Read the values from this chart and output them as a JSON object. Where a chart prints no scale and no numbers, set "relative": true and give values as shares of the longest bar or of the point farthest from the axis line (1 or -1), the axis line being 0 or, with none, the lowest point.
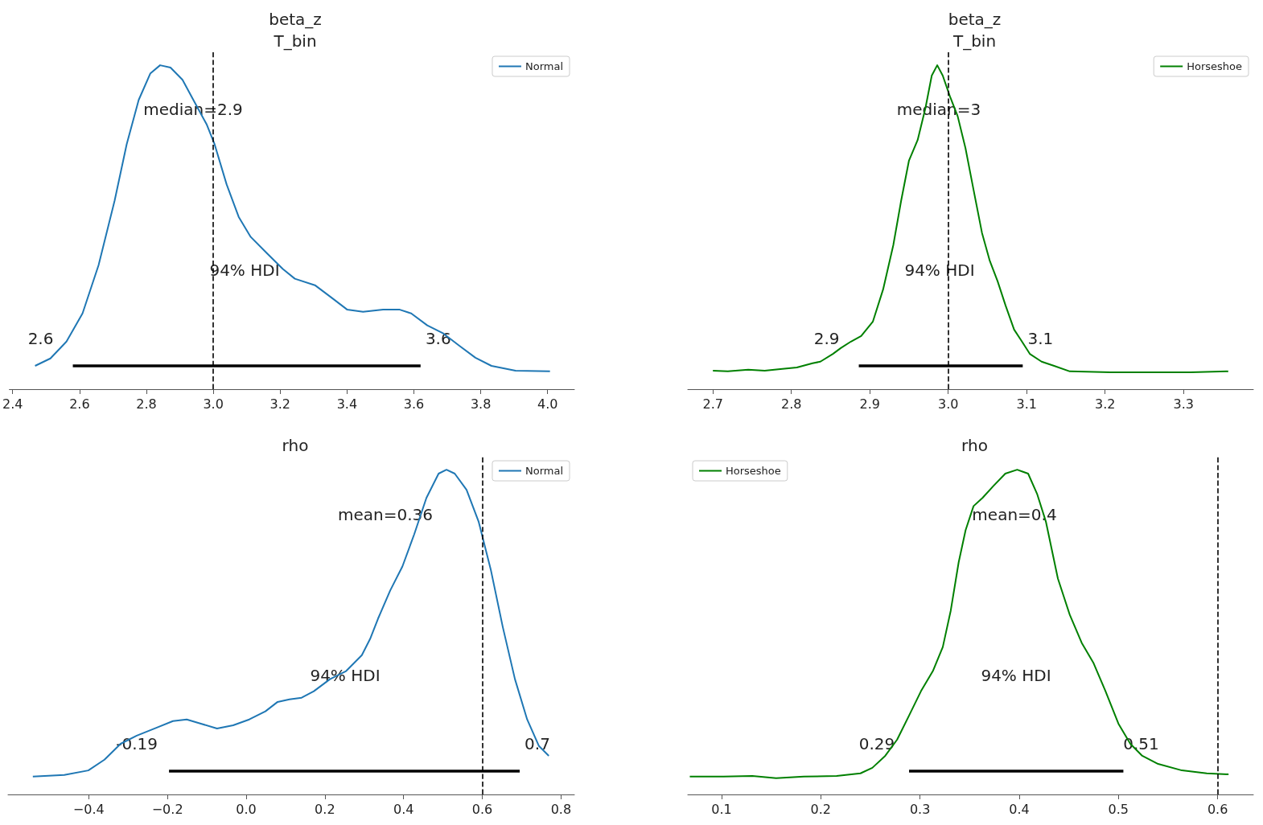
{
  "chart_data": [
    {
      "type": "line",
      "title": "beta_z\nT_bin",
      "relative": true,
      "tick_labels": "x",
      "marker": "none",
      "line_style": "solid",
      "legend": "top right",
      "xlim": [
        2.39,
        4.08
      ],
      "xticks": [
        2.4,
        2.6,
        2.8,
        {
          "value": 3.0,
          "label": "3.0"
        },
        3.2,
        3.4,
        3.6,
        3.8,
        {
          "value": 4.0,
          "label": "4.0"
        }
      ],
      "series": [
        {
          "name": "Normal",
          "color": "#1f77b4",
          "x": [
            2.467,
            2.513,
            2.561,
            2.609,
            2.657,
            2.705,
            2.741,
            2.777,
            2.812,
            2.841,
            2.872,
            2.908,
            2.944,
            2.98,
            3.004,
            3.04,
            3.076,
            3.112,
            3.16,
            3.208,
            3.244,
            3.304,
            3.352,
            3.4,
            3.448,
            3.508,
            3.556,
            3.592,
            3.64,
            3.688,
            3.736,
            3.784,
            3.832,
            3.904,
            4.007
          ],
          "values": [
            0.072,
            0.095,
            0.147,
            0.234,
            0.383,
            0.582,
            0.756,
            0.893,
            0.975,
            1.0,
            0.993,
            0.955,
            0.886,
            0.818,
            0.756,
            0.632,
            0.532,
            0.47,
            0.42,
            0.371,
            0.341,
            0.321,
            0.284,
            0.246,
            0.239,
            0.246,
            0.246,
            0.234,
            0.197,
            0.172,
            0.134,
            0.097,
            0.072,
            0.057,
            0.055
          ]
        },
        {
          "color": "#000000",
          "x": [
            2.58,
            3.62
          ],
          "values": [
            0.072,
            0.072
          ]
        }
      ],
      "ref_lines": [
        {
          "axis": "x",
          "value": 3.0,
          "color": "#000000",
          "line_style": "dashed"
        }
      ],
      "annotations": [
        "median=2.9",
        "94% HDI",
        {
          "text": "2.6",
          "x": 2.58,
          "y": 0.072
        },
        {
          "text": "3.6",
          "x": 3.62,
          "y": 0.072
        }
      ]
    },
    {
      "type": "line",
      "title": "beta_z\nT_bin",
      "relative": true,
      "tick_labels": "x",
      "marker": "none",
      "line_style": "solid",
      "legend": "top right",
      "xlim": [
        2.668,
        3.389
      ],
      "xticks": [
        2.7,
        2.8,
        2.9,
        {
          "value": 3.0,
          "label": "3.0"
        },
        3.1,
        3.2,
        3.3
      ],
      "series": [
        {
          "name": "Horseshoe",
          "color": "#008000",
          "x": [
            2.7,
            2.719,
            2.745,
            2.766,
            2.786,
            2.807,
            2.827,
            2.837,
            2.853,
            2.863,
            2.876,
            2.889,
            2.904,
            2.917,
            2.93,
            2.94,
            2.95,
            2.961,
            2.971,
            2.979,
            2.986,
            2.993,
            3.002,
            3.012,
            3.022,
            3.032,
            3.043,
            3.053,
            3.063,
            3.073,
            3.084,
            3.094,
            3.104,
            3.119,
            3.135,
            3.155,
            3.207,
            3.309,
            3.357
          ],
          "values": [
            0.057,
            0.055,
            0.06,
            0.057,
            0.062,
            0.067,
            0.08,
            0.085,
            0.109,
            0.127,
            0.147,
            0.164,
            0.209,
            0.308,
            0.445,
            0.582,
            0.706,
            0.769,
            0.868,
            0.968,
            1.0,
            0.968,
            0.905,
            0.843,
            0.744,
            0.619,
            0.483,
            0.396,
            0.333,
            0.259,
            0.184,
            0.147,
            0.109,
            0.085,
            0.072,
            0.055,
            0.052,
            0.052,
            0.055
          ]
        },
        {
          "color": "#000000",
          "x": [
            2.886,
            3.095
          ],
          "values": [
            0.072,
            0.072
          ]
        }
      ],
      "ref_lines": [
        {
          "axis": "x",
          "value": 3.0,
          "color": "#000000",
          "line_style": "dashed"
        }
      ],
      "annotations": [
        "median=3",
        "94% HDI",
        {
          "text": "2.9",
          "x": 2.886,
          "y": 0.072
        },
        {
          "text": "3.1",
          "x": 3.095,
          "y": 0.072
        }
      ]
    },
    {
      "type": "line",
      "title": "rho",
      "relative": true,
      "tick_labels": "x",
      "marker": "none",
      "line_style": "solid",
      "legend": "top right",
      "xlim": [
        -0.605,
        0.834
      ],
      "xticks": [
        {
          "value": -0.4,
          "label": "−0.4"
        },
        {
          "value": -0.2,
          "label": "−0.2"
        },
        {
          "value": 0.0,
          "label": "0.0"
        },
        0.2,
        0.4,
        0.6,
        0.8
      ],
      "series": [
        {
          "name": "Normal",
          "color": "#1f77b4",
          "x": [
            -0.542,
            -0.462,
            -0.401,
            -0.36,
            -0.319,
            -0.278,
            -0.227,
            -0.186,
            -0.151,
            -0.115,
            -0.074,
            -0.033,
            0.008,
            0.049,
            0.08,
            0.11,
            0.141,
            0.172,
            0.213,
            0.254,
            0.294,
            0.315,
            0.335,
            0.366,
            0.397,
            0.427,
            0.458,
            0.489,
            0.509,
            0.53,
            0.56,
            0.591,
            0.622,
            0.652,
            0.683,
            0.714,
            0.744,
            0.769
          ],
          "values": [
            0.055,
            0.06,
            0.074,
            0.107,
            0.156,
            0.181,
            0.206,
            0.226,
            0.231,
            0.218,
            0.203,
            0.213,
            0.231,
            0.256,
            0.285,
            0.293,
            0.298,
            0.318,
            0.355,
            0.38,
            0.429,
            0.479,
            0.541,
            0.628,
            0.702,
            0.801,
            0.913,
            0.988,
            1.0,
            0.988,
            0.938,
            0.839,
            0.69,
            0.516,
            0.355,
            0.231,
            0.149,
            0.119
          ]
        },
        {
          "color": "#000000",
          "x": [
            -0.196,
            0.695
          ],
          "values": [
            0.072,
            0.072
          ]
        }
      ],
      "ref_lines": [
        {
          "axis": "x",
          "value": 0.6,
          "color": "#000000",
          "line_style": "dashed"
        }
      ],
      "annotations": [
        "mean=0.36",
        "94% HDI",
        {
          "text": "-0.19",
          "x": -0.196,
          "y": 0.072
        },
        {
          "text": "0.7",
          "x": 0.695,
          "y": 0.072
        }
      ]
    },
    {
      "type": "line",
      "title": "rho",
      "relative": true,
      "tick_labels": "x",
      "marker": "none",
      "line_style": "solid",
      "legend": "top left",
      "xlim": [
        0.066,
        0.636
      ],
      "xticks": [
        0.1,
        0.2,
        0.3,
        0.4,
        0.5,
        0.6
      ],
      "series": [
        {
          "name": "Horseshoe",
          "color": "#008000",
          "x": [
            0.068,
            0.102,
            0.131,
            0.155,
            0.183,
            0.216,
            0.24,
            0.252,
            0.265,
            0.277,
            0.289,
            0.301,
            0.313,
            0.323,
            0.331,
            0.339,
            0.346,
            0.354,
            0.363,
            0.374,
            0.386,
            0.398,
            0.409,
            0.418,
            0.427,
            0.439,
            0.451,
            0.463,
            0.475,
            0.487,
            0.5,
            0.512,
            0.524,
            0.54,
            0.564,
            0.589,
            0.611
          ],
          "values": [
            0.055,
            0.055,
            0.057,
            0.05,
            0.055,
            0.057,
            0.065,
            0.082,
            0.119,
            0.169,
            0.243,
            0.318,
            0.38,
            0.454,
            0.566,
            0.715,
            0.814,
            0.888,
            0.913,
            0.95,
            0.988,
            1.0,
            0.988,
            0.926,
            0.839,
            0.665,
            0.553,
            0.467,
            0.404,
            0.318,
            0.218,
            0.156,
            0.119,
            0.094,
            0.074,
            0.065,
            0.062
          ]
        },
        {
          "color": "#000000",
          "x": [
            0.289,
            0.505
          ],
          "values": [
            0.072,
            0.072
          ]
        }
      ],
      "ref_lines": [
        {
          "axis": "x",
          "value": 0.6,
          "color": "#000000",
          "line_style": "dashed"
        }
      ],
      "annotations": [
        "mean=0.4",
        "94% HDI",
        {
          "text": "0.29",
          "x": 0.289,
          "y": 0.072
        },
        {
          "text": "0.51",
          "x": 0.505,
          "y": 0.072
        }
      ]
    }
  ]
}
